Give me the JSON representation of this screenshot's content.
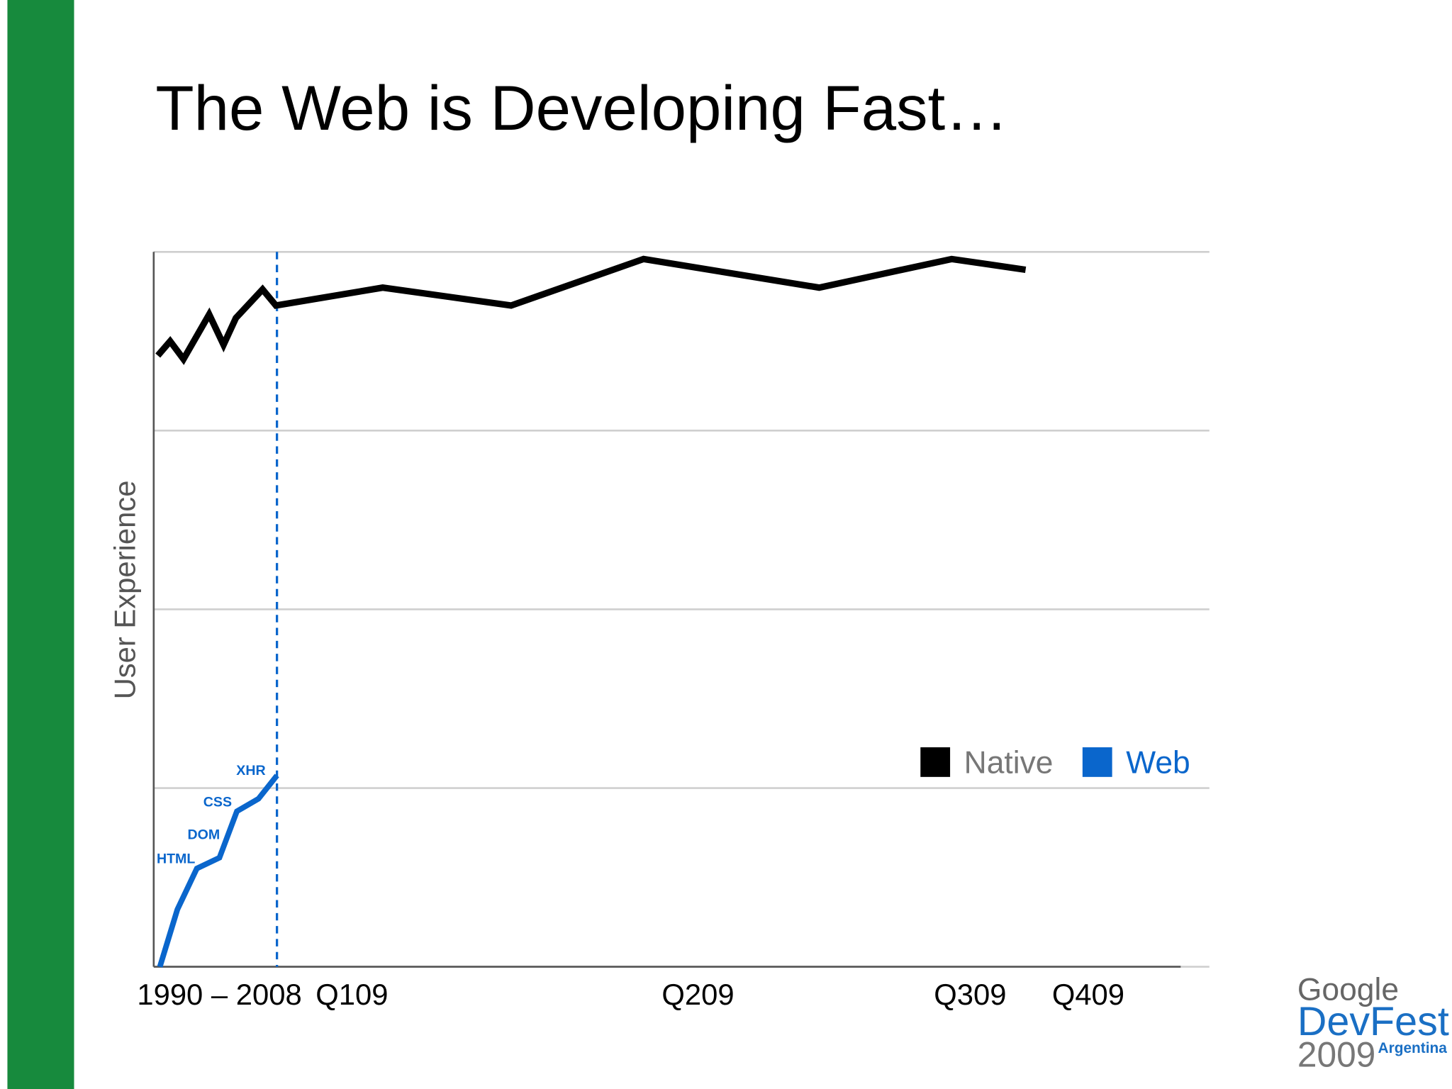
{
  "chart_data": {
    "type": "line",
    "title": "The Web is Developing Fast…",
    "ylabel": "User Experience",
    "xlim": [
      0,
      100
    ],
    "ylim": [
      0,
      4
    ],
    "xticks": [
      {
        "value": 6.4,
        "label": "1990 – 2008"
      },
      {
        "value": 19.3,
        "label": "Q109"
      },
      {
        "value": 53.0,
        "label": "Q209"
      },
      {
        "value": 79.5,
        "label": "Q309"
      },
      {
        "value": 91.0,
        "label": "Q409"
      }
    ],
    "yticks": [
      0,
      1,
      2,
      3,
      4
    ],
    "grid": true,
    "legend": "lower right",
    "reference_line_x": 12.0,
    "series": [
      {
        "name": "Native",
        "color": "#000000",
        "x": [
          0.4,
          1.6,
          2.9,
          5.4,
          6.8,
          8.0,
          10.6,
          11.9,
          22.3,
          34.8,
          47.7,
          64.8,
          77.7,
          84.9
        ],
        "values": [
          3.42,
          3.5,
          3.4,
          3.65,
          3.48,
          3.63,
          3.79,
          3.7,
          3.8,
          3.7,
          3.96,
          3.8,
          3.96,
          3.9
        ]
      },
      {
        "name": "Web",
        "color": "#0a66cc",
        "x": [
          0.6,
          2.3,
          4.2,
          6.4,
          8.1,
          10.2,
          12.0
        ],
        "values": [
          0,
          0.32,
          0.55,
          0.61,
          0.87,
          0.94,
          1.07
        ]
      }
    ],
    "annotations": [
      "HTML",
      "DOM",
      "CSS",
      "XHR"
    ]
  },
  "logo": {
    "line1": "Google",
    "line2": "DevFest",
    "line3": "2009",
    "line4": "Argentina"
  }
}
